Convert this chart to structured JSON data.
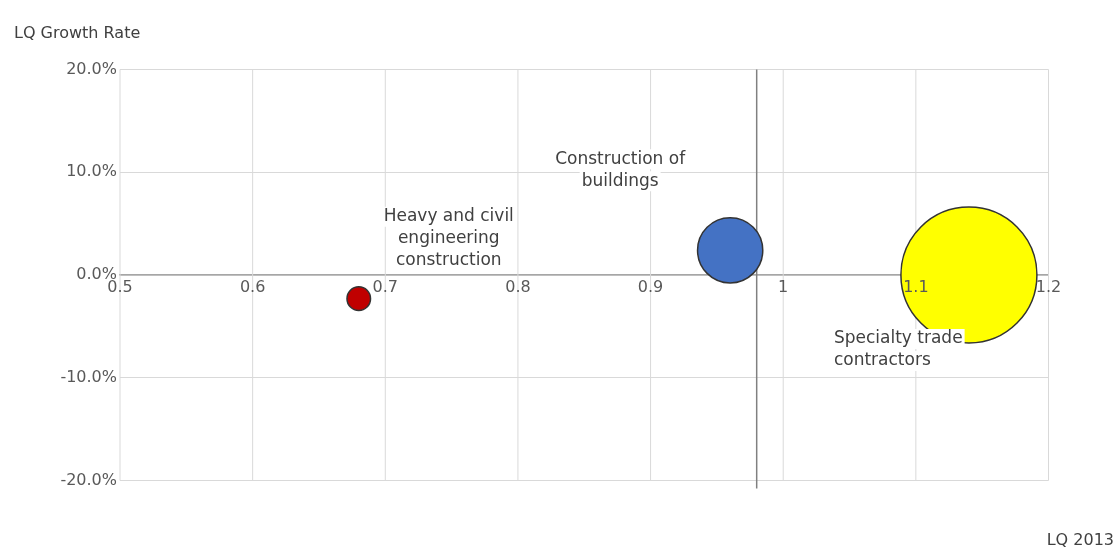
{
  "chart_data": {
    "type": "bubble",
    "xlabel": "LQ 2013",
    "ylabel": "LQ Growth Rate",
    "xlim": [
      0.5,
      1.2
    ],
    "xticks": [
      0.5,
      0.6,
      0.7,
      0.8,
      0.9,
      1,
      1.1,
      1.2
    ],
    "ylim": [
      -20,
      20
    ],
    "yticks": [
      {
        "value": -20,
        "label": "-20.0%"
      },
      {
        "value": -10,
        "label": "-10.0%"
      },
      {
        "value": 0,
        "label": "0.0%"
      },
      {
        "value": 10,
        "label": "10.0%"
      },
      {
        "value": 20,
        "label": "20.0%"
      }
    ],
    "grid": true,
    "legend": false,
    "ref_lines": [
      {
        "axis": "x",
        "value": 0.98,
        "color": "#808080"
      }
    ],
    "series": [
      {
        "name": "Heavy and civil engineering construction",
        "color": "#c00000",
        "x": [
          0.68
        ],
        "values": [
          -2.3
        ],
        "sizes": [
          0.03
        ]
      },
      {
        "name": "Construction of buildings",
        "color": "#4472c4",
        "x": [
          0.96
        ],
        "values": [
          2.4
        ],
        "sizes": [
          0.23
        ]
      },
      {
        "name": "Specialty trade contractors",
        "color": "#ffff00",
        "x": [
          1.14
        ],
        "values": [
          0
        ],
        "sizes": [
          1
        ]
      }
    ]
  }
}
